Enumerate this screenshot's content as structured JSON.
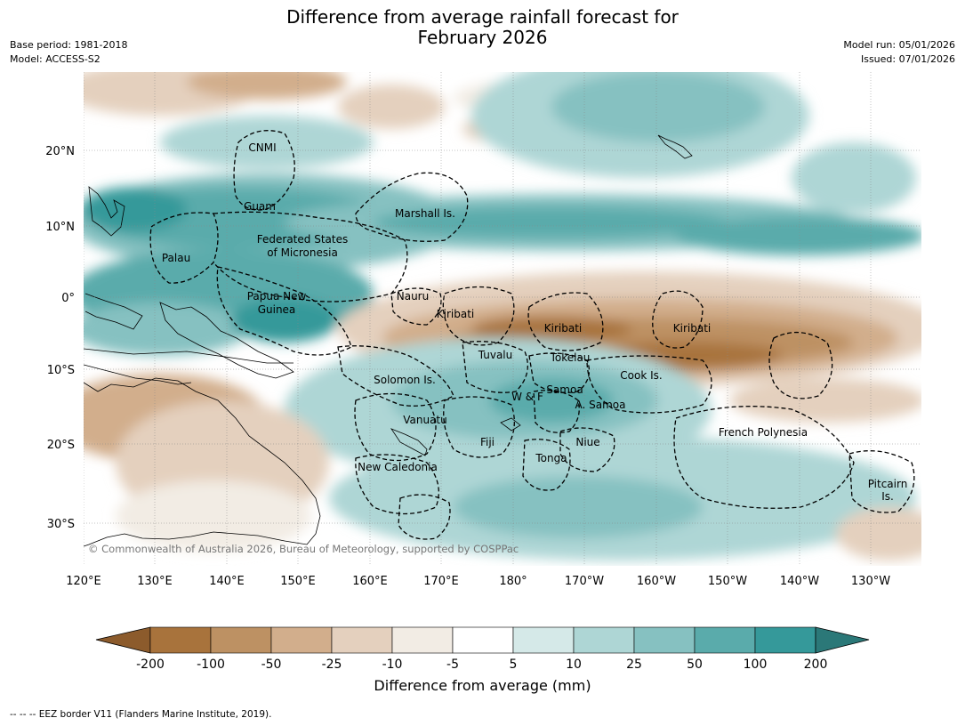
{
  "title": {
    "line1": "Difference from average rainfall forecast for",
    "line2": "February 2026"
  },
  "meta": {
    "base_period": "Base period: 1981-2018",
    "model": "Model: ACCESS-S2",
    "model_run": "Model run: 05/01/2026",
    "issued": "Issued: 07/01/2026"
  },
  "axes": {
    "lat_labels": [
      "20°N",
      "10°N",
      "0°",
      "10°S",
      "20°S",
      "30°S"
    ],
    "lon_labels": [
      "120°E",
      "130°E",
      "140°E",
      "150°E",
      "160°E",
      "170°E",
      "180°",
      "170°W",
      "160°W",
      "150°W",
      "140°W",
      "130°W"
    ]
  },
  "places": {
    "cnmi": "CNMI",
    "guam": "Guam",
    "marshall": "Marshall Is.",
    "fsm_1": "Federated States",
    "fsm_2": "of Micronesia",
    "palau": "Palau",
    "png_1": "Papua New",
    "png_2": "Guinea",
    "nauru": "Nauru",
    "kiribati_w": "Kiribati",
    "kiribati_c": "Kiribati",
    "kiribati_e": "Kiribati",
    "tuvalu": "Tuvalu",
    "tokelau": "Tokelau",
    "cook": "Cook Is.",
    "solomon": "Solomon Is.",
    "samoa": "Samoa",
    "wf": "W & F",
    "asamoa": "A. Samoa",
    "vanuatu": "Vanuatu",
    "fiji": "Fiji",
    "niue": "Niue",
    "tonga": "Tonga",
    "new_caledonia": "New Caledonia",
    "french_polynesia": "French Polynesia",
    "pitcairn_1": "Pitcairn",
    "pitcairn_2": "Is."
  },
  "copyright": "© Commonwealth of Australia 2026, Bureau of Meteorology, supported by COSPPac",
  "colorbar": {
    "title": "Difference from average (mm)",
    "ticks": [
      "-200",
      "-100",
      "-50",
      "-25",
      "-10",
      "-5",
      "5",
      "10",
      "25",
      "50",
      "100",
      "200"
    ],
    "colors": [
      "#a8733c",
      "#bd9163",
      "#d2ae8c",
      "#e4d0be",
      "#f2ece4",
      "#ffffff",
      "#d5e9e8",
      "#aed6d5",
      "#86c1c1",
      "#5aabab",
      "#35999a"
    ],
    "extend_low": "#8c5b2c",
    "extend_high": "#2b7878"
  },
  "footer": "--  --  -- EEZ border V11 (Flanders Marine Institute, 2019)."
}
